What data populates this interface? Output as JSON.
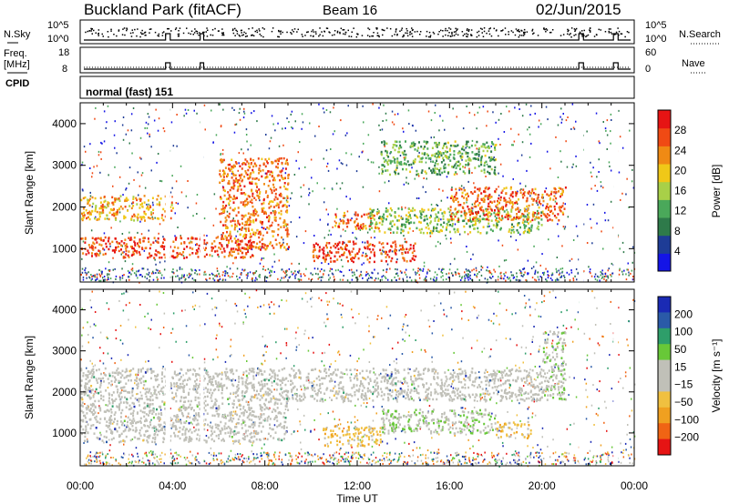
{
  "header": {
    "title": "Buckland Park (fitACF)",
    "beam": "Beam 16",
    "date": "02/Jun/2015"
  },
  "strips": {
    "nsky_label": "N.Sky",
    "nsky_ticks": [
      "10^5",
      "10^0"
    ],
    "nsearch_label": "N.Search",
    "nsearch_ticks": [
      "10^5",
      "10^0"
    ],
    "freq_label_1": "Freq.",
    "freq_label_2": "[MHz]",
    "freq_ticks": [
      "18",
      "8"
    ],
    "nave_label": "Nave",
    "nave_ticks": [
      "60",
      "0"
    ],
    "cpid_label": "CPID",
    "cpid_value": "normal (fast) 151"
  },
  "colors": {
    "power_scale": [
      "#1414e6",
      "#1e3c96",
      "#2e7a4a",
      "#4aa85a",
      "#a8d048",
      "#f0c818",
      "#f08a14",
      "#f04a14",
      "#e61414"
    ],
    "velocity_scale": [
      "#e61414",
      "#f06414",
      "#f0a020",
      "#f0c040",
      "#c0c0b8",
      "#c0c0b8",
      "#68c838",
      "#2e9e6a",
      "#2a5aa8",
      "#1a2ab4"
    ],
    "ground_scatter": "#c0c0b8"
  },
  "chart_data": [
    {
      "type": "heatmap",
      "name": "power",
      "ylabel": "Slant Range [km]",
      "yticks": [
        "1000",
        "2000",
        "3000",
        "4000"
      ],
      "ylim": [
        200,
        4500
      ],
      "xlim": [
        0,
        24
      ],
      "colorbar": {
        "label": "Power [dB]",
        "ticks": [
          "4",
          "8",
          "12",
          "16",
          "20",
          "24",
          "28"
        ],
        "range": [
          0,
          30
        ]
      },
      "features": [
        {
          "x": [
            0,
            7.5
          ],
          "y": [
            800,
            1300
          ],
          "value": 27
        },
        {
          "x": [
            0,
            4
          ],
          "y": [
            1700,
            2300
          ],
          "value": 21
        },
        {
          "x": [
            6,
            9
          ],
          "y": [
            1000,
            3200
          ],
          "value": 24
        },
        {
          "x": [
            10,
            14.5
          ],
          "y": [
            700,
            1200
          ],
          "value": 27
        },
        {
          "x": [
            11,
            13
          ],
          "y": [
            1500,
            1900
          ],
          "value": 24
        },
        {
          "x": [
            12.5,
            20
          ],
          "y": [
            1400,
            2000
          ],
          "value": 14
        },
        {
          "x": [
            16,
            21
          ],
          "y": [
            1700,
            2500
          ],
          "value": 25
        },
        {
          "x": [
            13,
            18
          ],
          "y": [
            2800,
            3600
          ],
          "value": 12
        }
      ]
    },
    {
      "type": "heatmap",
      "name": "velocity",
      "xlabel": "Time UT",
      "ylabel": "Slant Range [km]",
      "xticks": [
        "00:00",
        "04:00",
        "08:00",
        "12:00",
        "16:00",
        "20:00",
        "00:00"
      ],
      "yticks": [
        "1000",
        "2000",
        "3000",
        "4000"
      ],
      "ylim": [
        200,
        4500
      ],
      "xlim": [
        0,
        24
      ],
      "colorbar": {
        "label": "Velocity [m s⁻¹]",
        "ticks": [
          "200",
          "100",
          "50",
          "15",
          "−15",
          "−50",
          "−100",
          "−200"
        ],
        "range": [
          -250,
          250
        ]
      },
      "features": [
        {
          "x": [
            0,
            9
          ],
          "y": [
            800,
            2600
          ],
          "value": 0
        },
        {
          "x": [
            9,
            20
          ],
          "y": [
            1800,
            2600
          ],
          "value": 0
        },
        {
          "x": [
            10.5,
            13
          ],
          "y": [
            700,
            1200
          ],
          "value": -80
        },
        {
          "x": [
            18,
            19.5
          ],
          "y": [
            900,
            1300
          ],
          "value": -80
        },
        {
          "x": [
            13,
            18
          ],
          "y": [
            1000,
            1600
          ],
          "value": 40
        },
        {
          "x": [
            20,
            21
          ],
          "y": [
            1800,
            3500
          ],
          "value": 40
        }
      ]
    }
  ]
}
